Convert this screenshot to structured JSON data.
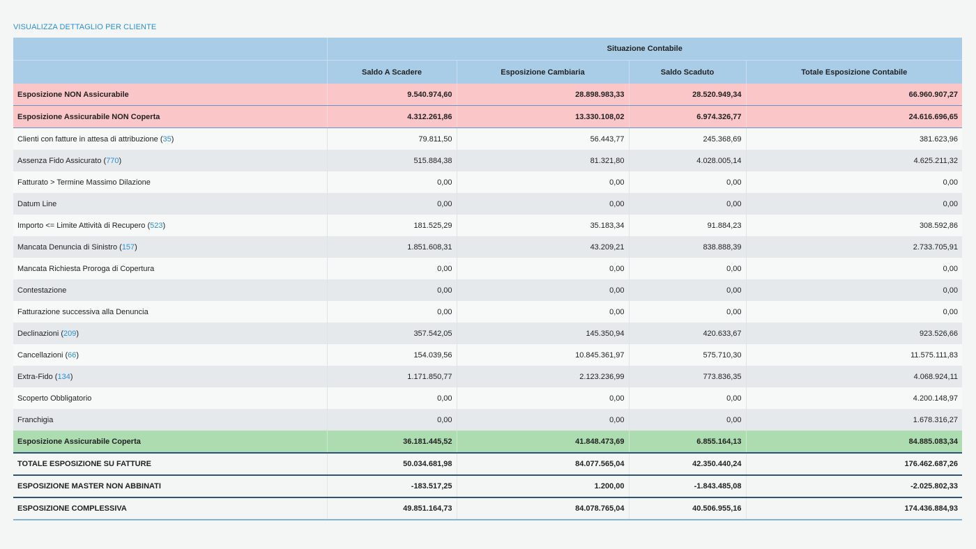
{
  "top_link": "VISUALIZZA DETTAGLIO PER CLIENTE",
  "header": {
    "group_label": "Situazione Contabile",
    "columns": [
      "Saldo A Scadere",
      "Esposizione Cambiaria",
      "Saldo Scaduto",
      "Totale Esposizione Contabile"
    ]
  },
  "colors": {
    "header_bg": "#a9cce7",
    "not_insurable_bg": "#fbc6c8",
    "covered_bg": "#acdcaf",
    "link": "#2a8fd8",
    "rule": "#2e5378"
  },
  "rows": [
    {
      "style": "pink",
      "label": "Esposizione NON Assicurabile",
      "count": null,
      "values": [
        "9.540.974,60",
        "28.898.983,33",
        "28.520.949,34",
        "66.960.907,27"
      ]
    },
    {
      "style": "pink",
      "label": "Esposizione Assicurabile NON Coperta",
      "count": null,
      "values": [
        "4.312.261,86",
        "13.330.108,02",
        "6.974.326,77",
        "24.616.696,65"
      ]
    },
    {
      "style": "odd",
      "label": "Clienti con fatture in attesa di attribuzione",
      "count": "35",
      "values": [
        "79.811,50",
        "56.443,77",
        "245.368,69",
        "381.623,96"
      ]
    },
    {
      "style": "even",
      "label": "Assenza Fido Assicurato",
      "count": "770",
      "values": [
        "515.884,38",
        "81.321,80",
        "4.028.005,14",
        "4.625.211,32"
      ]
    },
    {
      "style": "odd",
      "label": "Fatturato > Termine Massimo Dilazione",
      "count": null,
      "values": [
        "0,00",
        "0,00",
        "0,00",
        "0,00"
      ]
    },
    {
      "style": "even",
      "label": "Datum Line",
      "count": null,
      "values": [
        "0,00",
        "0,00",
        "0,00",
        "0,00"
      ]
    },
    {
      "style": "odd",
      "label": "Importo <= Limite Attività di Recupero",
      "count": "523",
      "values": [
        "181.525,29",
        "35.183,34",
        "91.884,23",
        "308.592,86"
      ]
    },
    {
      "style": "even",
      "label": "Mancata Denuncia di Sinistro",
      "count": "157",
      "values": [
        "1.851.608,31",
        "43.209,21",
        "838.888,39",
        "2.733.705,91"
      ]
    },
    {
      "style": "odd",
      "label": "Mancata Richiesta Proroga di Copertura",
      "count": null,
      "values": [
        "0,00",
        "0,00",
        "0,00",
        "0,00"
      ]
    },
    {
      "style": "even",
      "label": "Contestazione",
      "count": null,
      "values": [
        "0,00",
        "0,00",
        "0,00",
        "0,00"
      ]
    },
    {
      "style": "odd",
      "label": "Fatturazione successiva alla Denuncia",
      "count": null,
      "values": [
        "0,00",
        "0,00",
        "0,00",
        "0,00"
      ]
    },
    {
      "style": "even",
      "label": "Declinazioni",
      "count": "209",
      "values": [
        "357.542,05",
        "145.350,94",
        "420.633,67",
        "923.526,66"
      ]
    },
    {
      "style": "odd",
      "label": "Cancellazioni",
      "count": "66",
      "values": [
        "154.039,56",
        "10.845.361,97",
        "575.710,30",
        "11.575.111,83"
      ]
    },
    {
      "style": "even",
      "label": "Extra-Fido",
      "count": "134",
      "values": [
        "1.171.850,77",
        "2.123.236,99",
        "773.836,35",
        "4.068.924,11"
      ]
    },
    {
      "style": "odd",
      "label": "Scoperto Obbligatorio",
      "count": null,
      "values": [
        "0,00",
        "0,00",
        "0,00",
        "4.200.148,97"
      ]
    },
    {
      "style": "even",
      "label": "Franchigia",
      "count": null,
      "values": [
        "0,00",
        "0,00",
        "0,00",
        "1.678.316,27"
      ]
    },
    {
      "style": "green",
      "label": "Esposizione Assicurabile Coperta",
      "count": null,
      "values": [
        "36.181.445,52",
        "41.848.473,69",
        "6.855.164,13",
        "84.885.083,34"
      ]
    },
    {
      "style": "total",
      "label": "TOTALE ESPOSIZIONE SU FATTURE",
      "count": null,
      "values": [
        "50.034.681,98",
        "84.077.565,04",
        "42.350.440,24",
        "176.462.687,26"
      ]
    },
    {
      "style": "total",
      "label": "ESPOSIZIONE MASTER NON ABBINATI",
      "count": null,
      "values": [
        "-183.517,25",
        "1.200,00",
        "-1.843.485,08",
        "-2.025.802,33"
      ]
    },
    {
      "style": "total last",
      "label": "ESPOSIZIONE COMPLESSIVA",
      "count": null,
      "values": [
        "49.851.164,73",
        "84.078.765,04",
        "40.506.955,16",
        "174.436.884,93"
      ]
    }
  ]
}
